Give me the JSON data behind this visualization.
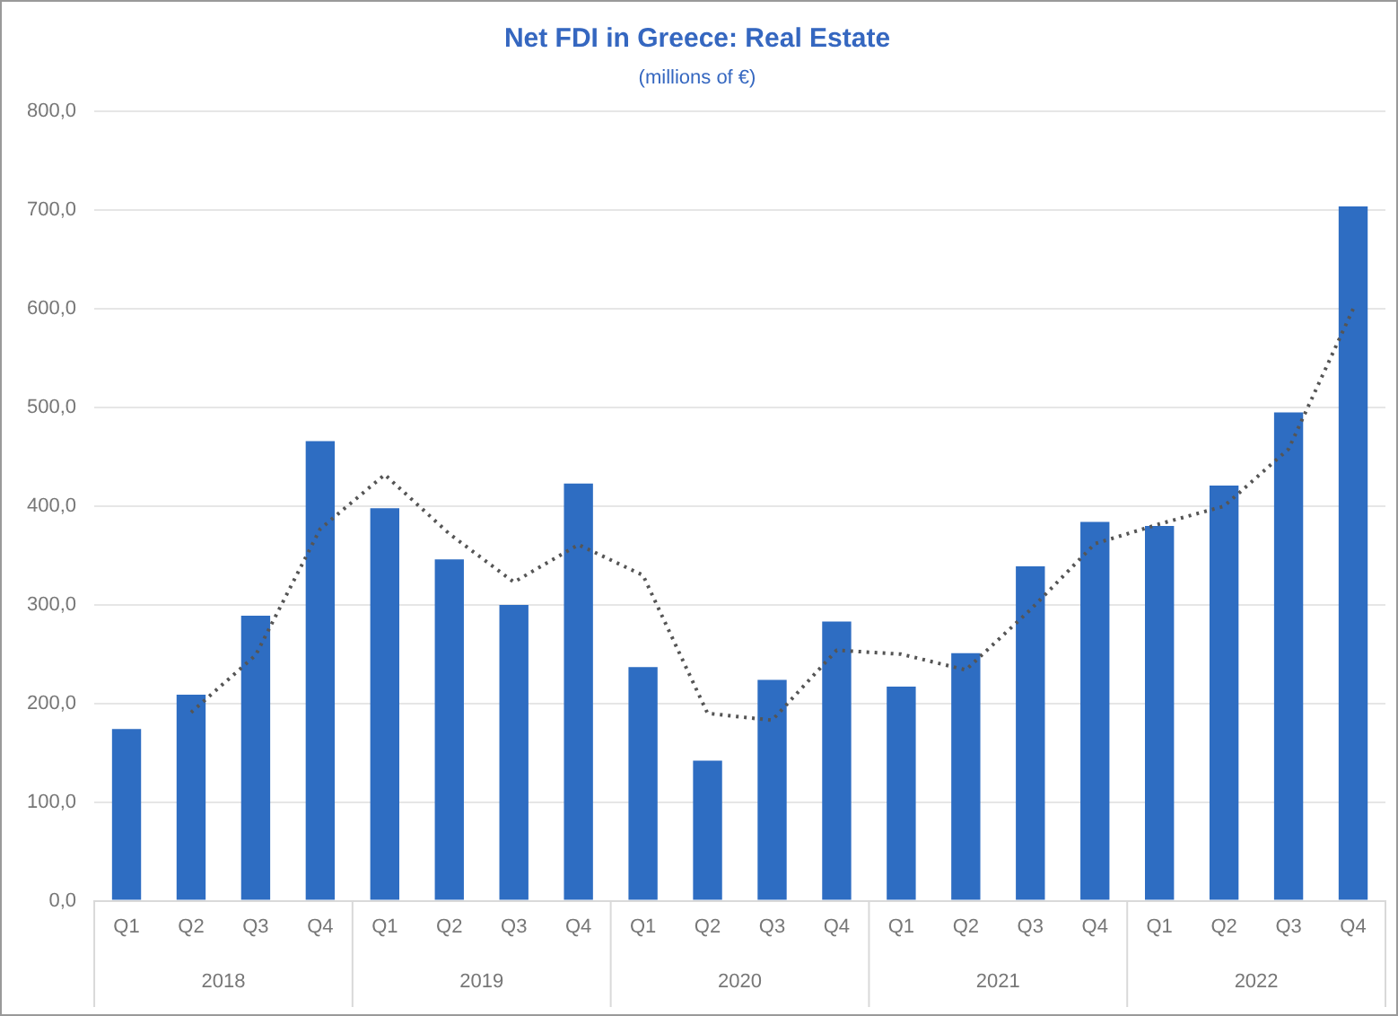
{
  "chart_data": {
    "type": "bar",
    "title": "Net FDI in Greece: Real Estate",
    "subtitle": "(millions of €)",
    "categories": [
      "Q1",
      "Q2",
      "Q3",
      "Q4",
      "Q1",
      "Q2",
      "Q3",
      "Q4",
      "Q1",
      "Q2",
      "Q3",
      "Q4",
      "Q1",
      "Q2",
      "Q3",
      "Q4",
      "Q1",
      "Q2",
      "Q3",
      "Q4"
    ],
    "series": [
      {
        "color": "#2e6dc2",
        "values": [
          174,
          209,
          289,
          466,
          398,
          346,
          300,
          423,
          237,
          142,
          224,
          283,
          217,
          251,
          339,
          384,
          380,
          421,
          495,
          704
        ]
      },
      {
        "type": "line",
        "color": "#555555",
        "line_style": "dotted",
        "marker": "none",
        "values": [
          null,
          191,
          249,
          377,
          432,
          372,
          323,
          361,
          330,
          190,
          183,
          254,
          250,
          234,
          295,
          362,
          382,
          400,
          458,
          600
        ]
      }
    ],
    "ylim": [
      0,
      800
    ],
    "yticks": [
      {
        "value": 0,
        "label": "0,0"
      },
      {
        "value": 100,
        "label": "100,0"
      },
      {
        "value": 200,
        "label": "200,0"
      },
      {
        "value": 300,
        "label": "300,0"
      },
      {
        "value": 400,
        "label": "400,0"
      },
      {
        "value": 500,
        "label": "500,0"
      },
      {
        "value": 600,
        "label": "600,0"
      },
      {
        "value": 700,
        "label": "700,0"
      },
      {
        "value": 800,
        "label": "800,0"
      }
    ],
    "grid": "y",
    "legend": false,
    "annotations": [
      "2018",
      "2019",
      "2020",
      "2021",
      "2022"
    ]
  }
}
